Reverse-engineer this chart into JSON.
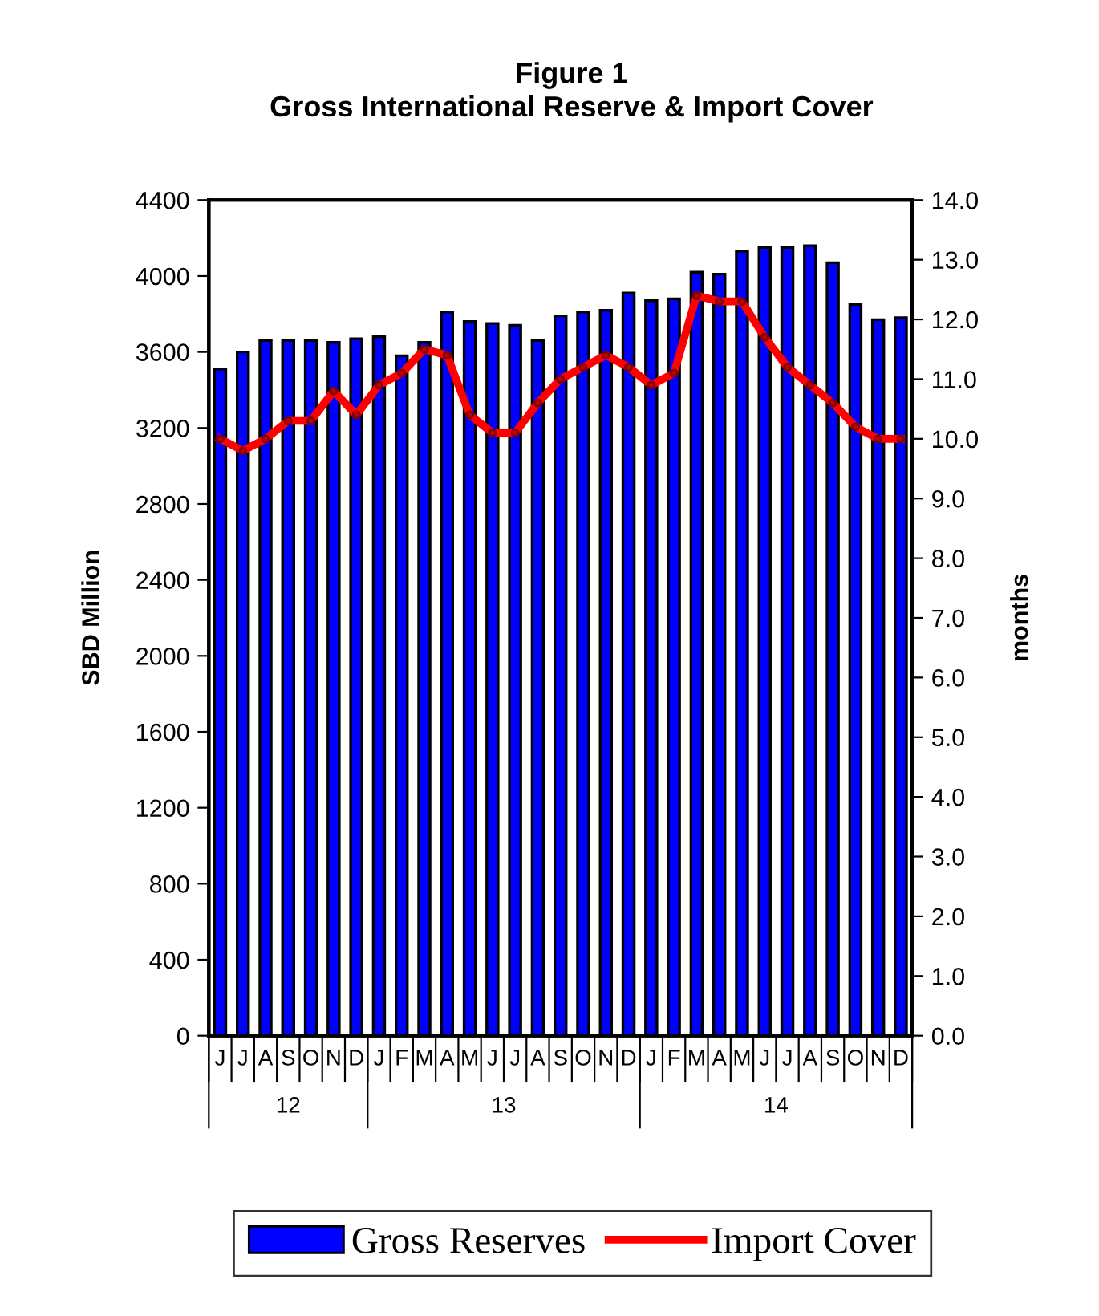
{
  "chart_data": {
    "type": "bar",
    "title": "Figure 1\nGross International Reserve & Import Cover",
    "categories": [
      "J",
      "J",
      "A",
      "S",
      "O",
      "N",
      "D",
      "J",
      "F",
      "M",
      "A",
      "M",
      "J",
      "J",
      "A",
      "S",
      "O",
      "N",
      "D",
      "J",
      "F",
      "M",
      "A",
      "M",
      "J",
      "J",
      "A",
      "S",
      "O",
      "N",
      "D"
    ],
    "series": [
      {
        "name": "Gross Reserves",
        "color": "#0000ff",
        "values": [
          3510,
          3600,
          3660,
          3660,
          3660,
          3650,
          3670,
          3680,
          3580,
          3650,
          3810,
          3760,
          3750,
          3740,
          3660,
          3790,
          3810,
          3820,
          3910,
          3870,
          3880,
          4020,
          4010,
          4130,
          4150,
          4150,
          4160,
          4070,
          3850,
          3770,
          3780
        ]
      },
      {
        "name": "Import Cover",
        "type": "line",
        "axis": "y2",
        "color": "#ff0000",
        "marker": "circle",
        "line_style": "solid",
        "values": [
          10.0,
          9.8,
          10.0,
          10.3,
          10.3,
          10.8,
          10.4,
          10.9,
          11.1,
          11.5,
          11.4,
          10.4,
          10.1,
          10.1,
          10.6,
          11.0,
          11.2,
          11.4,
          11.2,
          10.9,
          11.1,
          12.4,
          12.3,
          12.3,
          11.7,
          11.2,
          10.9,
          10.6,
          10.2,
          10.0,
          10.0
        ]
      }
    ],
    "ylabel": "SBD Million",
    "y2label": "months",
    "ylim": [
      0,
      4400
    ],
    "yticks": [
      0,
      400,
      800,
      1200,
      1600,
      2000,
      2400,
      2800,
      3200,
      3600,
      4000,
      4400
    ],
    "y2lim": [
      0,
      14
    ],
    "y2ticks": [
      {
        "value": 0,
        "label": "0.0"
      },
      {
        "value": 1,
        "label": "1.0"
      },
      {
        "value": 2,
        "label": "2.0"
      },
      {
        "value": 3,
        "label": "3.0"
      },
      {
        "value": 4,
        "label": "4.0"
      },
      {
        "value": 5,
        "label": "5.0"
      },
      {
        "value": 6,
        "label": "6.0"
      },
      {
        "value": 7,
        "label": "7.0"
      },
      {
        "value": 8,
        "label": "8.0"
      },
      {
        "value": 9,
        "label": "9.0"
      },
      {
        "value": 10,
        "label": "10.0"
      },
      {
        "value": 11,
        "label": "11.0"
      },
      {
        "value": 12,
        "label": "12.0"
      },
      {
        "value": 13,
        "label": "13.0"
      },
      {
        "value": 14,
        "label": "14.0"
      }
    ],
    "annotations": [
      "12",
      "13",
      "14"
    ],
    "grid": false,
    "legend": "bottom"
  }
}
